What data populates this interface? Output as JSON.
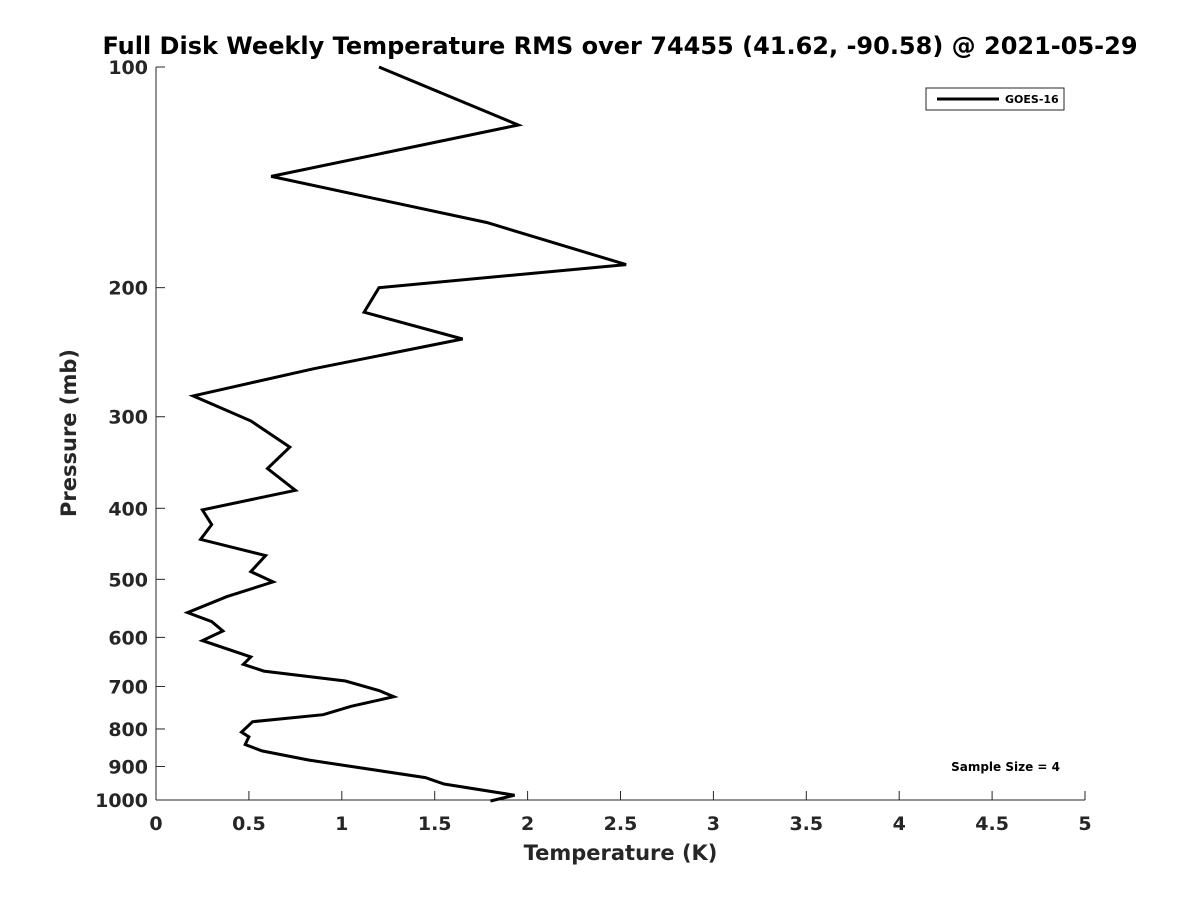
{
  "chart_data": {
    "type": "line",
    "title": "Full Disk Weekly Temperature RMS over 74455 (41.62, -90.58) @ 2021-05-29",
    "xlabel": "Temperature (K)",
    "ylabel": "Pressure (mb)",
    "xlim": [
      0,
      5
    ],
    "ylim": [
      100,
      1000
    ],
    "y_scale": "log",
    "y_reversed": true,
    "xticks": [
      0,
      0.5,
      1,
      1.5,
      2,
      2.5,
      3,
      3.5,
      4,
      4.5,
      5
    ],
    "xtick_labels": [
      "0",
      "0.5",
      "1",
      "1.5",
      "2",
      "2.5",
      "3",
      "3.5",
      "4",
      "4.5",
      "5"
    ],
    "yticks": [
      100,
      200,
      300,
      400,
      500,
      600,
      700,
      800,
      900,
      1000
    ],
    "ytick_labels": [
      "100",
      "200",
      "300",
      "400",
      "500",
      "600",
      "700",
      "800",
      "900",
      "1000"
    ],
    "grid": false,
    "legend_position": "top-right",
    "series": [
      {
        "name": "GOES-16",
        "color": "#000000",
        "points": [
          [
            1.2,
            100
          ],
          [
            1.95,
            120
          ],
          [
            0.62,
            141
          ],
          [
            1.78,
            163
          ],
          [
            2.53,
            186
          ],
          [
            1.2,
            200
          ],
          [
            1.12,
            216
          ],
          [
            1.65,
            235
          ],
          [
            0.85,
            258
          ],
          [
            0.2,
            281
          ],
          [
            0.51,
            304
          ],
          [
            0.72,
            330
          ],
          [
            0.6,
            353
          ],
          [
            0.75,
            378
          ],
          [
            0.25,
            402
          ],
          [
            0.3,
            421
          ],
          [
            0.24,
            441
          ],
          [
            0.59,
            464
          ],
          [
            0.51,
            488
          ],
          [
            0.63,
            504
          ],
          [
            0.38,
            528
          ],
          [
            0.17,
            555
          ],
          [
            0.3,
            571
          ],
          [
            0.36,
            588
          ],
          [
            0.25,
            606
          ],
          [
            0.51,
            638
          ],
          [
            0.47,
            653
          ],
          [
            0.58,
            667
          ],
          [
            1.02,
            688
          ],
          [
            1.2,
            709
          ],
          [
            1.28,
            723
          ],
          [
            1.05,
            745
          ],
          [
            0.9,
            765
          ],
          [
            0.52,
            782
          ],
          [
            0.46,
            808
          ],
          [
            0.5,
            820
          ],
          [
            0.48,
            840
          ],
          [
            0.57,
            857
          ],
          [
            0.82,
            882
          ],
          [
            1.45,
            932
          ],
          [
            1.55,
            951
          ],
          [
            1.93,
            985
          ],
          [
            1.8,
            1003
          ]
        ]
      }
    ],
    "annotation": "Sample Size = 4"
  }
}
